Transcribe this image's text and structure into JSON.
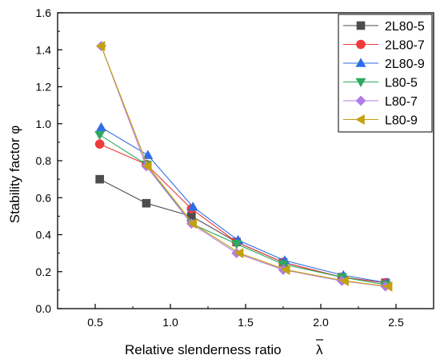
{
  "chart_data": {
    "type": "line",
    "title": "",
    "xlabel": "Relative slenderness ratio",
    "xlabel_symbol": "λ",
    "ylabel": "Stability factor φ",
    "xlim": [
      0.25,
      2.75
    ],
    "ylim": [
      0.0,
      1.6
    ],
    "xticks": [
      "0.5",
      "1.0",
      "1.5",
      "2.0",
      "2.5"
    ],
    "yticks": [
      "0.0",
      "0.2",
      "0.4",
      "0.6",
      "0.8",
      "1.0",
      "1.2",
      "1.4",
      "1.6"
    ],
    "grid": false,
    "legend_position": "top-right",
    "series": [
      {
        "name": "2L80-5",
        "color": "#4d4d4d",
        "marker": "square",
        "x": [
          0.53,
          0.84,
          1.14,
          1.44,
          1.75,
          2.14,
          2.43
        ],
        "y": [
          0.7,
          0.57,
          0.5,
          0.36,
          0.25,
          0.17,
          0.14
        ]
      },
      {
        "name": "2L80-7",
        "color": "#ee3b3b",
        "marker": "circle",
        "x": [
          0.53,
          0.84,
          1.14,
          1.44,
          1.75,
          2.14,
          2.43
        ],
        "y": [
          0.89,
          0.78,
          0.54,
          0.36,
          0.25,
          0.17,
          0.14
        ]
      },
      {
        "name": "2L80-9",
        "color": "#2e6de6",
        "marker": "triangle-up",
        "x": [
          0.54,
          0.85,
          1.15,
          1.45,
          1.76,
          2.15,
          2.44
        ],
        "y": [
          0.98,
          0.83,
          0.55,
          0.37,
          0.26,
          0.18,
          0.14
        ]
      },
      {
        "name": "L80-5",
        "color": "#2faa5e",
        "marker": "triangle-down",
        "x": [
          0.53,
          0.84,
          1.14,
          1.44,
          1.75,
          2.14,
          2.43
        ],
        "y": [
          0.94,
          0.78,
          0.46,
          0.35,
          0.24,
          0.17,
          0.13
        ]
      },
      {
        "name": "L80-7",
        "color": "#b37be6",
        "marker": "diamond",
        "x": [
          0.54,
          0.84,
          1.14,
          1.44,
          1.75,
          2.14,
          2.43
        ],
        "y": [
          1.42,
          0.77,
          0.46,
          0.3,
          0.21,
          0.15,
          0.12
        ]
      },
      {
        "name": "L80-9",
        "color": "#c4a10f",
        "marker": "triangle-left",
        "x": [
          0.54,
          0.85,
          1.15,
          1.46,
          1.77,
          2.16,
          2.45
        ],
        "y": [
          1.42,
          0.77,
          0.46,
          0.3,
          0.21,
          0.15,
          0.12
        ]
      }
    ]
  }
}
